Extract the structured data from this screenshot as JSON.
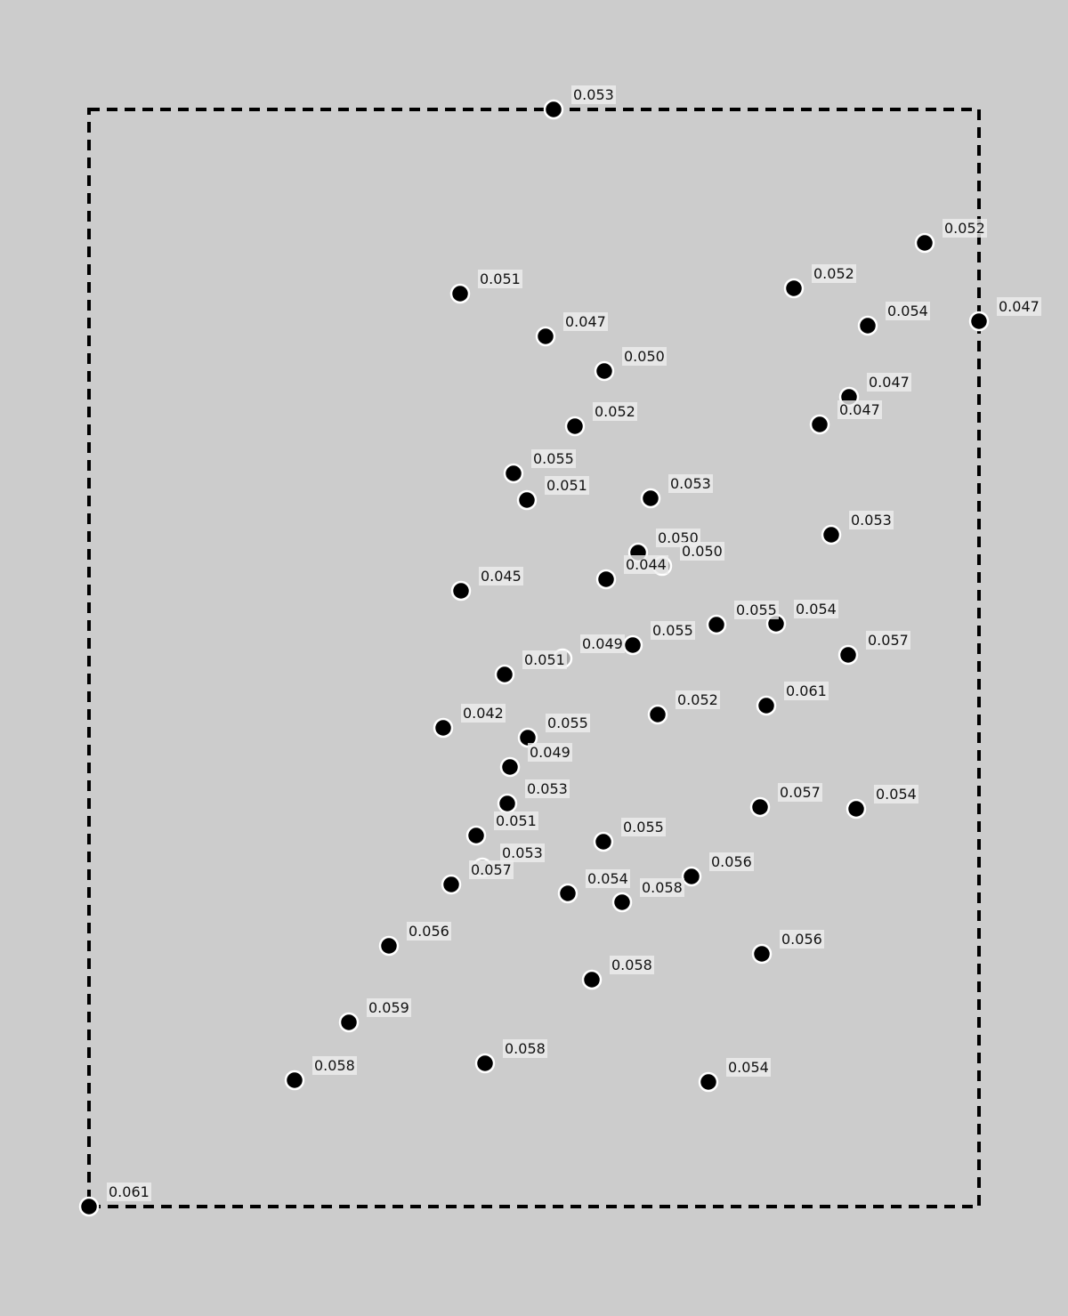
{
  "chart_data": {
    "type": "scatter",
    "title": "",
    "xlabel": "",
    "ylabel": "",
    "grid": false,
    "legend": "none",
    "frame": "dashed",
    "xlim": [
      0,
      1000
    ],
    "ylim": [
      0,
      1233
    ],
    "colors": {
      "background": "#cccccc",
      "marker_fill": "#000000",
      "marker_faint": "#a8a8a8",
      "marker_stroke": "#ffffff",
      "frame": "#000000",
      "label_bg": "#eeeeee"
    },
    "points": [
      {
        "x": 522,
        "y": 1233,
        "label": "0.053"
      },
      {
        "x": 939,
        "y": 1083,
        "label": "0.052"
      },
      {
        "x": 792,
        "y": 1032,
        "label": "0.052"
      },
      {
        "x": 417,
        "y": 1026,
        "label": "0.051"
      },
      {
        "x": 1000,
        "y": 995,
        "label": "0.047"
      },
      {
        "x": 875,
        "y": 990,
        "label": "0.054"
      },
      {
        "x": 513,
        "y": 978,
        "label": "0.047"
      },
      {
        "x": 579,
        "y": 939,
        "label": "0.050"
      },
      {
        "x": 854,
        "y": 910,
        "label": "0.047"
      },
      {
        "x": 821,
        "y": 879,
        "label": "0.047"
      },
      {
        "x": 546,
        "y": 877,
        "label": "0.052"
      },
      {
        "x": 477,
        "y": 824,
        "label": "0.055"
      },
      {
        "x": 492,
        "y": 794,
        "label": "0.051"
      },
      {
        "x": 631,
        "y": 796,
        "label": "0.053"
      },
      {
        "x": 834,
        "y": 755,
        "label": "0.053"
      },
      {
        "x": 617,
        "y": 735,
        "label": "0.050"
      },
      {
        "x": 644,
        "y": 720,
        "label": "0.050",
        "faint": true
      },
      {
        "x": 581,
        "y": 705,
        "label": "0.044"
      },
      {
        "x": 418,
        "y": 692,
        "label": "0.045"
      },
      {
        "x": 705,
        "y": 654,
        "label": "0.055"
      },
      {
        "x": 772,
        "y": 655,
        "label": "0.054"
      },
      {
        "x": 611,
        "y": 631,
        "label": "0.055"
      },
      {
        "x": 532,
        "y": 616,
        "label": "0.049",
        "faint": true
      },
      {
        "x": 853,
        "y": 620,
        "label": "0.057"
      },
      {
        "x": 467,
        "y": 598,
        "label": "0.051"
      },
      {
        "x": 761,
        "y": 563,
        "label": "0.061"
      },
      {
        "x": 639,
        "y": 553,
        "label": "0.052"
      },
      {
        "x": 398,
        "y": 538,
        "label": "0.042"
      },
      {
        "x": 493,
        "y": 527,
        "label": "0.055"
      },
      {
        "x": 473,
        "y": 494,
        "label": "0.049"
      },
      {
        "x": 470,
        "y": 453,
        "label": "0.053"
      },
      {
        "x": 754,
        "y": 449,
        "label": "0.057"
      },
      {
        "x": 862,
        "y": 447,
        "label": "0.054"
      },
      {
        "x": 435,
        "y": 417,
        "label": "0.051"
      },
      {
        "x": 578,
        "y": 410,
        "label": "0.055"
      },
      {
        "x": 442,
        "y": 381,
        "label": "0.053",
        "faint": true
      },
      {
        "x": 677,
        "y": 371,
        "label": "0.056"
      },
      {
        "x": 407,
        "y": 362,
        "label": "0.057"
      },
      {
        "x": 538,
        "y": 352,
        "label": "0.054"
      },
      {
        "x": 599,
        "y": 342,
        "label": "0.058"
      },
      {
        "x": 337,
        "y": 293,
        "label": "0.056"
      },
      {
        "x": 756,
        "y": 284,
        "label": "0.056"
      },
      {
        "x": 565,
        "y": 255,
        "label": "0.058"
      },
      {
        "x": 292,
        "y": 207,
        "label": "0.059"
      },
      {
        "x": 445,
        "y": 161,
        "label": "0.058"
      },
      {
        "x": 231,
        "y": 142,
        "label": "0.058"
      },
      {
        "x": 696,
        "y": 140,
        "label": "0.054"
      },
      {
        "x": 0,
        "y": 0,
        "label": "0.061"
      }
    ]
  }
}
